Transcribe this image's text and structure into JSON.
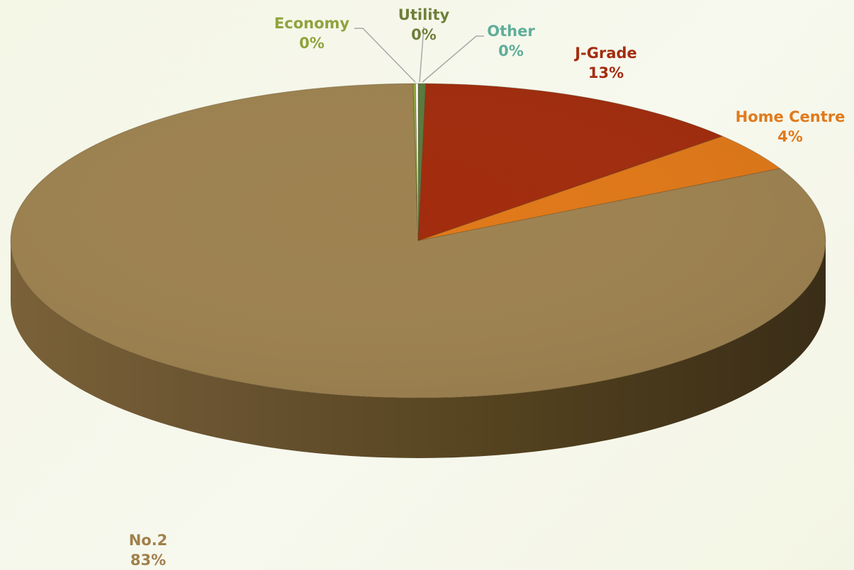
{
  "chart_data": {
    "type": "pie",
    "style": "3d",
    "title": "",
    "start_angle_deg": 0,
    "direction": "clockwise",
    "slices": [
      {
        "key": "utility",
        "label": "Utility",
        "value": 0.3,
        "pct_label": "0%",
        "color": "#5a7a3c",
        "label_color": "#6e7f3a"
      },
      {
        "key": "jgrade",
        "label": "J-Grade",
        "value": 13.2,
        "pct_label": "13%",
        "color": "#a12b0c",
        "label_color": "#a32d10"
      },
      {
        "key": "homecentre",
        "label": "Home Centre",
        "value": 4.0,
        "pct_label": "4%",
        "color": "#e07818",
        "label_color": "#e07a1c"
      },
      {
        "key": "no2",
        "label": "No.2",
        "value": 82.9,
        "pct_label": "83%",
        "color": "#9e8250",
        "label_color": "#a0804c"
      },
      {
        "key": "economy",
        "label": "Economy",
        "value": 0.1,
        "pct_label": "0%",
        "color": "#8faa3c",
        "label_color": "#8fa33c"
      },
      {
        "key": "other",
        "label": "Other",
        "value": 0.1,
        "pct_label": "0%",
        "color": "#ffffff",
        "label_color": "#5fae9a"
      }
    ]
  }
}
